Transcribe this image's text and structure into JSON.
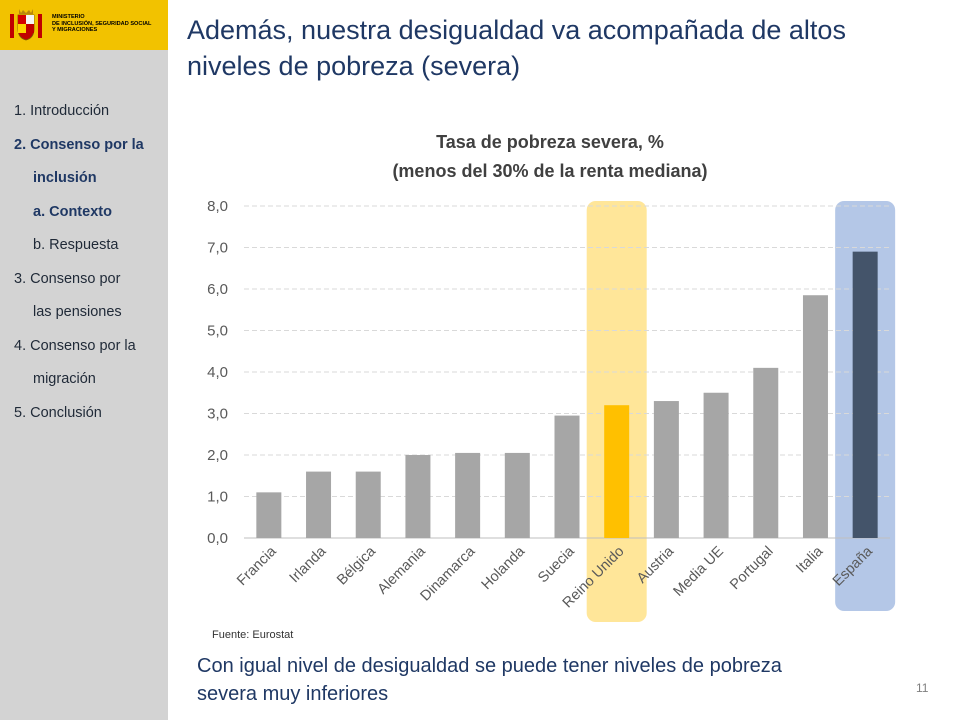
{
  "logo": {
    "text_lines": [
      "MINISTERIO",
      "DE INCLUSIÓN, SEGURIDAD SOCIAL",
      "Y MIGRACIONES"
    ]
  },
  "nav": {
    "items": [
      {
        "label": "1. Introducción",
        "bold": false,
        "indent": false
      },
      {
        "label": "2. Consenso por la",
        "bold": true,
        "indent": false
      },
      {
        "label": "inclusión",
        "bold": true,
        "indent": true
      },
      {
        "label": "a. Contexto",
        "bold": true,
        "indent": true
      },
      {
        "label": "b. Respuesta",
        "bold": false,
        "indent": true
      },
      {
        "label": "3. Consenso por",
        "bold": false,
        "indent": false
      },
      {
        "label": "las pensiones",
        "bold": false,
        "indent": true
      },
      {
        "label": "4. Consenso por la",
        "bold": false,
        "indent": false
      },
      {
        "label": "migración",
        "bold": false,
        "indent": true
      },
      {
        "label": "5. Conclusión",
        "bold": false,
        "indent": false
      }
    ]
  },
  "slide": {
    "title_line1": "Además, nuestra desigualdad va acompañada de altos",
    "title_line2": "niveles de pobreza (severa)",
    "source": "Fuente: Eurostat",
    "footnote_line1": "Con igual nivel de desigualdad se puede tener niveles de pobreza",
    "footnote_line2": "severa muy inferiores",
    "page_number": "11"
  },
  "chart_data": {
    "type": "bar",
    "title_line1": "Tasa de pobreza severa, %",
    "title_line2": "(menos del 30% de la renta mediana)",
    "categories": [
      "Francia",
      "Irlanda",
      "Bélgica",
      "Alemania",
      "Dinamarca",
      "Holanda",
      "Suecia",
      "Reino Unido",
      "Austria",
      "Media UE",
      "Portugal",
      "Italia",
      "España"
    ],
    "values": [
      1.1,
      1.6,
      1.6,
      2.0,
      2.05,
      2.05,
      2.95,
      3.2,
      3.3,
      3.5,
      4.1,
      5.85,
      6.9
    ],
    "yticks": [
      "0,0",
      "1,0",
      "2,0",
      "3,0",
      "4,0",
      "5,0",
      "6,0",
      "7,0",
      "8,0"
    ],
    "ylim": [
      0,
      8
    ],
    "grid": true,
    "legend": "none",
    "highlighted": [
      "Reino Unido",
      "España"
    ],
    "colors": {
      "default_bar": "#a6a6a6",
      "reino_unido_bar": "#ffc000",
      "espana_bar": "#44546a",
      "reino_unido_highlight": "#ffe699",
      "espana_highlight": "#b4c7e7",
      "gridline": "#d9d9d9",
      "axis_line": "#bfbfbf",
      "tick_label": "#595959"
    }
  }
}
